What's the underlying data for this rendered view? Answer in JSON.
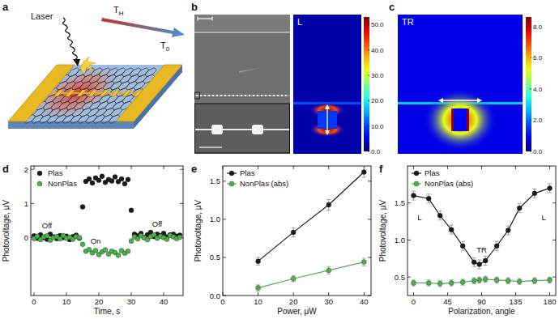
{
  "panel_labels": [
    "a",
    "b",
    "c",
    "d",
    "e",
    "f"
  ],
  "schematic": {
    "laser": "Laser",
    "hot": {
      "base": "T",
      "sub": "H"
    },
    "cold": {
      "base": "T",
      "sub": "0"
    }
  },
  "field_maps": [
    {
      "label": "L",
      "colorbar": {
        "range": [
          0,
          53
        ],
        "ticks": [
          {
            "value": 0,
            "label": "0.0"
          },
          {
            "value": 10,
            "label": "10.0"
          },
          {
            "value": 20,
            "label": "20.0"
          },
          {
            "value": 30,
            "label": "30.0"
          },
          {
            "value": 40,
            "label": "40.0"
          },
          {
            "value": 50,
            "label": "50.0"
          }
        ]
      }
    },
    {
      "label": "TR",
      "colorbar": {
        "range": [
          0,
          8.6
        ],
        "ticks": [
          {
            "value": 0,
            "label": "0.0"
          },
          {
            "value": 2,
            "label": "2.0"
          },
          {
            "value": 4,
            "label": "4.0"
          },
          {
            "value": 6,
            "label": "6.0"
          },
          {
            "value": 8,
            "label": "8.0"
          }
        ]
      }
    }
  ],
  "chart_data": [
    {
      "type": "scatter",
      "xlabel": "Time, s",
      "ylabel": "Photovoltage, μV",
      "xlim": [
        -1,
        46
      ],
      "ylim": [
        -1.7,
        2.1
      ],
      "xticks": [
        0,
        10,
        20,
        30,
        40
      ],
      "yticks": [
        0,
        1,
        2
      ],
      "legend": "upper left",
      "grid": false,
      "x": [
        0,
        1,
        2,
        3,
        4,
        5,
        6,
        7,
        8,
        9,
        10,
        11,
        12,
        13,
        14,
        15,
        16,
        17,
        18,
        19,
        20,
        21,
        22,
        23,
        24,
        25,
        26,
        27,
        28,
        29,
        30,
        31,
        32,
        33,
        34,
        35,
        36,
        37,
        38,
        39,
        40,
        41,
        42,
        43,
        44,
        45
      ],
      "series": [
        {
          "name": "Plas",
          "color": "#1b1b1b",
          "marker": "circle",
          "line_style": "none",
          "values": [
            0.05,
            -0.02,
            0.08,
            0.0,
            -0.05,
            0.1,
            0.02,
            -0.03,
            0.06,
            0.0,
            0.04,
            -0.06,
            0.03,
            0.07,
            -0.02,
            0.9,
            1.65,
            1.72,
            1.6,
            1.75,
            1.68,
            1.8,
            1.62,
            1.7,
            1.66,
            1.78,
            1.64,
            1.72,
            1.58,
            1.7,
            0.8,
            0.1,
            0.05,
            0.12,
            0.0,
            0.08,
            0.15,
            0.03,
            0.1,
            0.06,
            0.12,
            0.02,
            0.08,
            0.1,
            0.04,
            0.07
          ]
        },
        {
          "name": "NonPlas",
          "color": "#4fae4f",
          "marker": "circle",
          "line_style": "none",
          "values": [
            -0.03,
            0.04,
            -0.06,
            0.02,
            0.05,
            -0.08,
            0.0,
            0.03,
            -0.04,
            0.06,
            -0.02,
            0.01,
            -0.05,
            0.03,
            0.0,
            -0.2,
            -0.4,
            -0.35,
            -0.45,
            -0.38,
            -0.5,
            -0.42,
            -0.36,
            -0.48,
            -0.4,
            -0.44,
            -0.52,
            -0.38,
            -0.46,
            -0.4,
            -0.1,
            0.02,
            -0.04,
            0.05,
            0.0,
            -0.06,
            0.03,
            0.08,
            -0.02,
            0.04,
            0.0,
            -0.05,
            0.06,
            0.02,
            -0.03,
            0.01
          ]
        }
      ],
      "annotations": [
        {
          "text": "Off",
          "x": 4,
          "y": 0.35
        },
        {
          "text": "On",
          "x": 19,
          "y": -0.1
        },
        {
          "text": "Off",
          "x": 38,
          "y": 0.4
        }
      ]
    },
    {
      "type": "line",
      "xlabel": "Power, μW",
      "ylabel": "Photovoltage, μV",
      "xlim": [
        0,
        42
      ],
      "ylim": [
        0,
        1.7
      ],
      "xticks": [
        0,
        10,
        20,
        30,
        40
      ],
      "yticks": [
        {
          "value": 0,
          "label": "0.0"
        },
        {
          "value": 0.5,
          "label": "0.5"
        },
        {
          "value": 1,
          "label": "1.0"
        },
        {
          "value": 1.5,
          "label": "1.5"
        }
      ],
      "legend": "upper left",
      "grid": false,
      "x": [
        10,
        20,
        30,
        40
      ],
      "series": [
        {
          "name": "Plas",
          "color": "#1b1b1b",
          "marker": "circle",
          "line_style": "solid",
          "values": [
            0.45,
            0.83,
            1.19,
            1.62
          ],
          "errors": [
            0.05,
            0.06,
            0.07,
            0.07
          ]
        },
        {
          "name": "NonPlas (abs)",
          "color": "#4fae4f",
          "marker": "circle",
          "line_style": "solid",
          "values": [
            0.1,
            0.22,
            0.33,
            0.44
          ],
          "errors": [
            0.04,
            0.04,
            0.05,
            0.05
          ]
        }
      ]
    },
    {
      "type": "line",
      "xlabel": "Polarization, angle",
      "ylabel": "Photovoltage, μV",
      "xlim": [
        -8,
        188
      ],
      "ylim": [
        0.25,
        2.0
      ],
      "xticks": [
        0,
        45,
        90,
        135,
        180
      ],
      "yticks": [
        {
          "value": 0.5,
          "label": "0.5"
        },
        {
          "value": 1,
          "label": "1.0"
        },
        {
          "value": 1.5,
          "label": "1.5"
        }
      ],
      "legend": "upper left",
      "grid": false,
      "x": [
        0,
        20,
        35,
        50,
        65,
        80,
        87,
        95,
        110,
        125,
        140,
        160,
        180
      ],
      "series": [
        {
          "name": "Plas",
          "color": "#1b1b1b",
          "marker": "circle",
          "line_style": "solid",
          "values": [
            1.6,
            1.56,
            1.33,
            1.14,
            0.92,
            0.7,
            0.67,
            0.72,
            0.92,
            1.13,
            1.43,
            1.63,
            1.7
          ],
          "errors": [
            0.06,
            0.06,
            0.06,
            0.06,
            0.06,
            0.06,
            0.06,
            0.06,
            0.06,
            0.06,
            0.06,
            0.06,
            0.06
          ]
        },
        {
          "name": "NonPlas (abs)",
          "color": "#4fae4f",
          "marker": "circle",
          "line_style": "solid",
          "values": [
            0.42,
            0.42,
            0.41,
            0.42,
            0.43,
            0.45,
            0.46,
            0.47,
            0.46,
            0.45,
            0.44,
            0.45,
            0.46
          ],
          "errors": [
            0.04,
            0.04,
            0.04,
            0.04,
            0.04,
            0.04,
            0.04,
            0.04,
            0.04,
            0.04,
            0.04,
            0.04,
            0.04
          ]
        }
      ],
      "annotations": [
        {
          "text": "L",
          "x": 8,
          "y": 1.3
        },
        {
          "text": "TR",
          "x": 90,
          "y": 0.86
        },
        {
          "text": "L",
          "x": 172,
          "y": 1.3
        }
      ]
    }
  ]
}
